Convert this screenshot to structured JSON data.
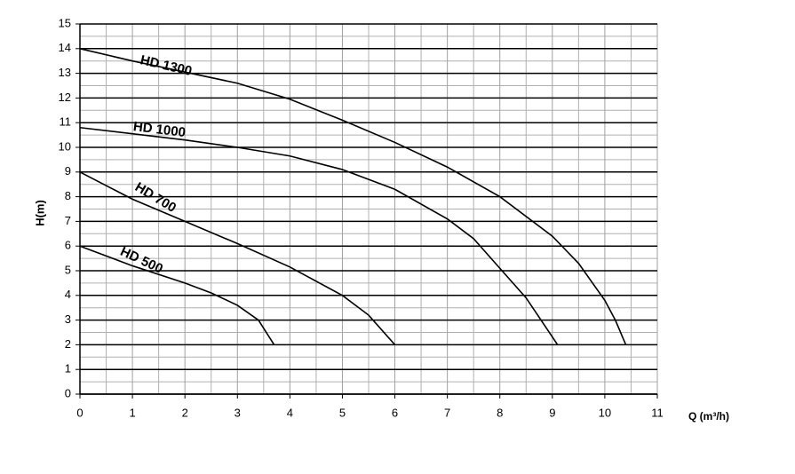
{
  "chart_data": {
    "type": "line",
    "x_label": "Q (m³/h)",
    "y_label": "H(m)",
    "xlim": [
      0,
      11
    ],
    "xticks": [
      0,
      1,
      2,
      3,
      4,
      5,
      6,
      7,
      8,
      9,
      10,
      11
    ],
    "ylim": [
      0,
      15
    ],
    "yticks": [
      0,
      1,
      2,
      3,
      4,
      5,
      6,
      7,
      8,
      9,
      10,
      11,
      12,
      13,
      14,
      15
    ],
    "grid": true,
    "series": [
      {
        "name": "HD 1300",
        "color": "#000000",
        "x": [
          0,
          1,
          2,
          3,
          4,
          5,
          6,
          7,
          8,
          9,
          9.5,
          10,
          10.2,
          10.4
        ],
        "values": [
          14,
          13.5,
          13.05,
          12.6,
          11.95,
          11.1,
          10.2,
          9.2,
          8.0,
          6.4,
          5.3,
          3.8,
          3.0,
          2.0
        ]
      },
      {
        "name": "HD 1000",
        "color": "#000000",
        "x": [
          0,
          1,
          2,
          3,
          4,
          5,
          6,
          7,
          7.5,
          8,
          8.5,
          9.1
        ],
        "values": [
          10.8,
          10.55,
          10.3,
          10.0,
          9.65,
          9.1,
          8.3,
          7.1,
          6.3,
          5.1,
          3.9,
          2.0
        ]
      },
      {
        "name": "HD 700",
        "color": "#000000",
        "x": [
          0,
          1,
          2,
          3,
          4,
          5,
          5.5,
          6
        ],
        "values": [
          9,
          7.9,
          7.0,
          6.1,
          5.15,
          4.0,
          3.2,
          2.0
        ]
      },
      {
        "name": "HD 500",
        "color": "#000000",
        "x": [
          0,
          1,
          2,
          2.5,
          3,
          3.4,
          3.7
        ],
        "values": [
          6,
          5.2,
          4.5,
          4.1,
          3.6,
          3.0,
          2.0
        ]
      }
    ]
  }
}
